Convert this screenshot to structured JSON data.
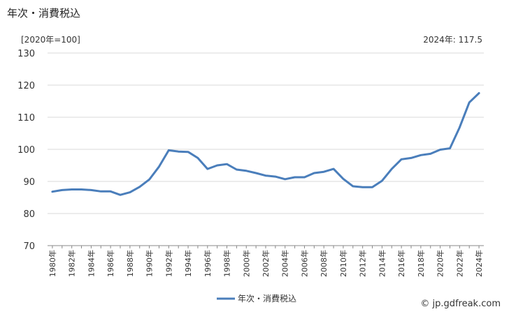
{
  "title": "年次・消費税込",
  "unit_label": "[2020年=100]",
  "latest_label": "2024年: 117.5",
  "credit": "© jp.gdfreak.com",
  "colors": {
    "series": "#4a7ebb",
    "grid": "#d9d9d9",
    "axis": "#888888"
  },
  "chart_data": {
    "type": "line",
    "title": "年次・消費税込",
    "ylabel": "[2020年=100]",
    "ylim": [
      70,
      130
    ],
    "yticks": [
      70,
      80,
      90,
      100,
      110,
      120,
      130
    ],
    "x": [
      1980,
      1981,
      1982,
      1983,
      1984,
      1985,
      1986,
      1987,
      1988,
      1989,
      1990,
      1991,
      1992,
      1993,
      1994,
      1995,
      1996,
      1997,
      1998,
      1999,
      2000,
      2001,
      2002,
      2003,
      2004,
      2005,
      2006,
      2007,
      2008,
      2009,
      2010,
      2011,
      2012,
      2013,
      2014,
      2015,
      2016,
      2017,
      2018,
      2019,
      2020,
      2021,
      2022,
      2023,
      2024
    ],
    "xtick_labels": [
      "1980年",
      "1982年",
      "1984年",
      "1986年",
      "1988年",
      "1990年",
      "1992年",
      "1994年",
      "1996年",
      "1998年",
      "2000年",
      "2002年",
      "2004年",
      "2006年",
      "2008年",
      "2010年",
      "2012年",
      "2014年",
      "2016年",
      "2018年",
      "2020年",
      "2022年",
      "2024年"
    ],
    "series": [
      {
        "name": "年次・消費税込",
        "values": [
          86.8,
          87.3,
          87.5,
          87.5,
          87.3,
          86.9,
          86.9,
          85.8,
          86.6,
          88.3,
          90.6,
          94.6,
          99.7,
          99.3,
          99.2,
          97.3,
          93.9,
          95.0,
          95.4,
          93.7,
          93.3,
          92.6,
          91.8,
          91.5,
          90.7,
          91.3,
          91.3,
          92.6,
          93.0,
          93.9,
          90.8,
          88.5,
          88.2,
          88.2,
          90.2,
          93.9,
          96.9,
          97.3,
          98.2,
          98.6,
          99.9,
          100.3,
          106.8,
          114.6,
          117.5
        ]
      }
    ],
    "legend": "bottom-center",
    "grid": true
  }
}
